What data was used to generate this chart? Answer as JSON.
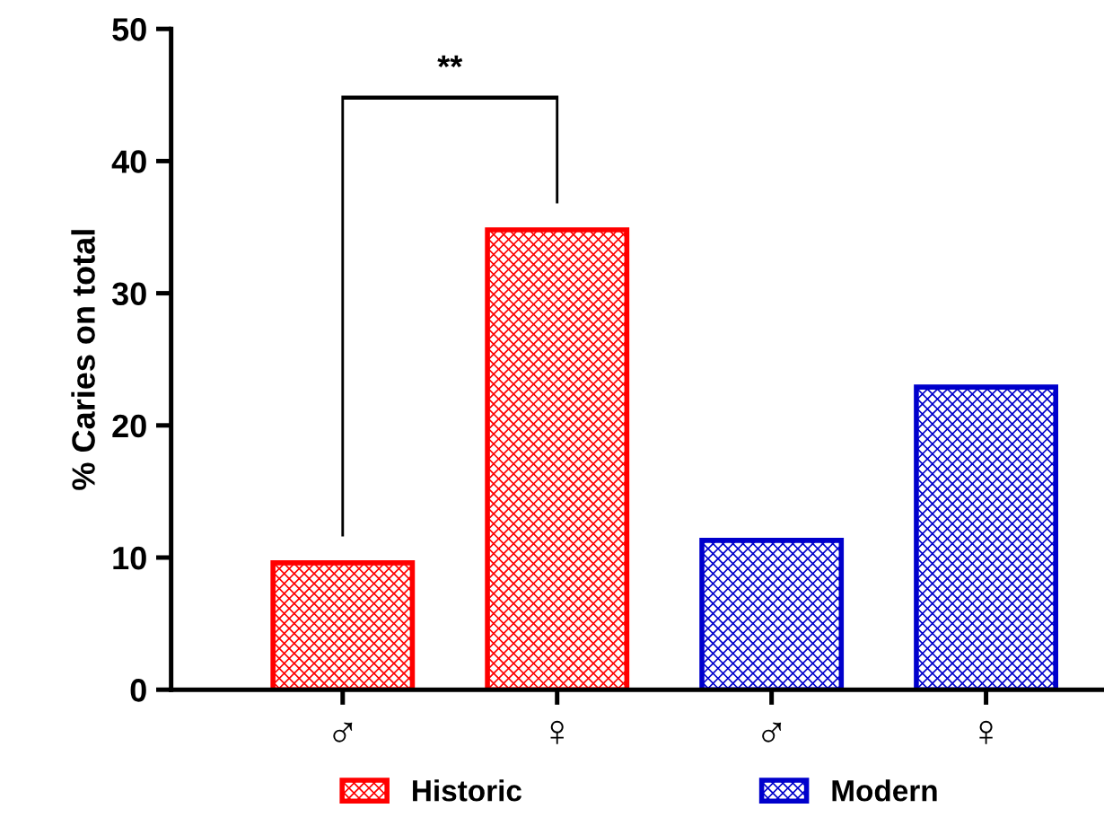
{
  "chart_data": {
    "type": "bar",
    "ylabel": "% Caries on total",
    "categories": [
      "♂",
      "♀",
      "♂",
      "♀"
    ],
    "series": [
      {
        "name": "Historic",
        "color": "#ff0000",
        "values": [
          9.6,
          34.8,
          null,
          null
        ]
      },
      {
        "name": "Modern",
        "color": "#0000cc",
        "values": [
          null,
          null,
          11.3,
          22.9
        ]
      }
    ],
    "ylim": [
      0,
      50
    ],
    "yticks": [
      0,
      10,
      20,
      30,
      40,
      50
    ],
    "grid": false,
    "legend": "bottom",
    "annotations": [
      "**"
    ]
  }
}
